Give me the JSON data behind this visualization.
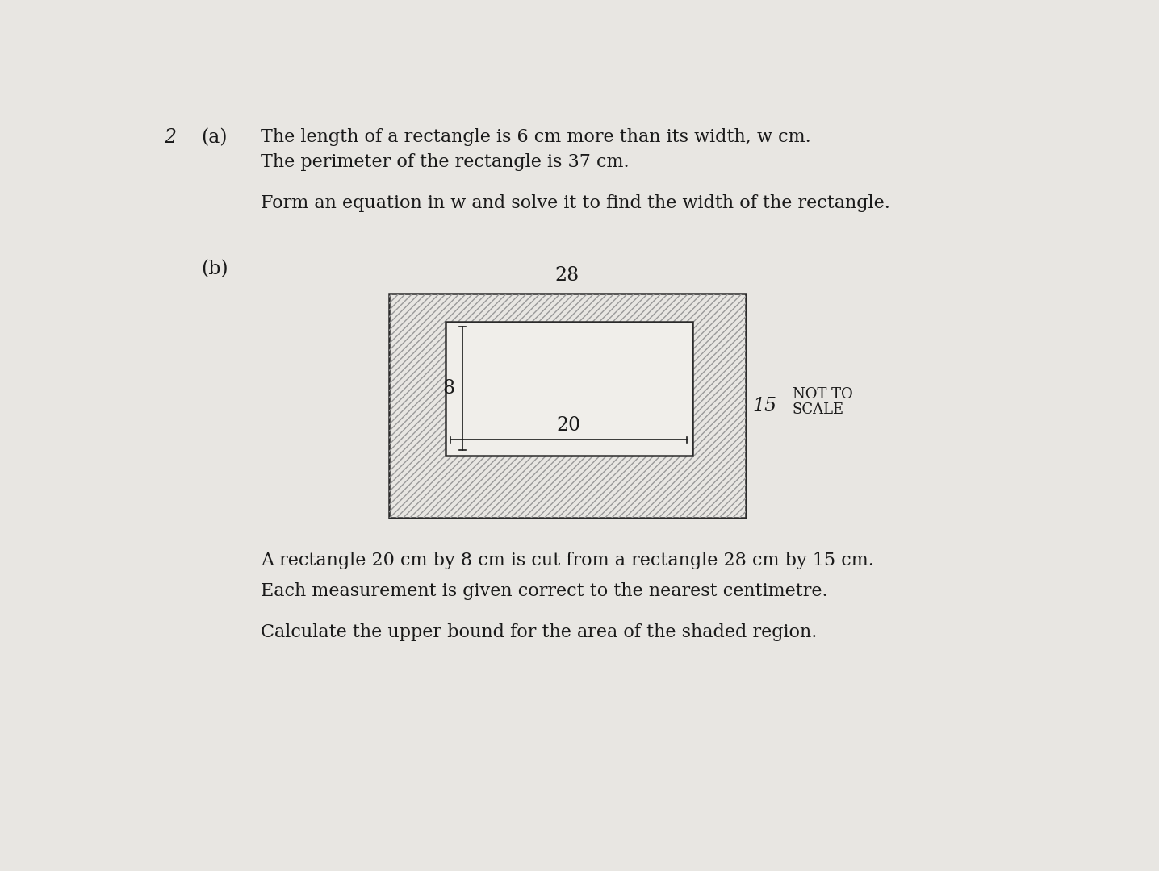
{
  "bg_color": "#e8e6e2",
  "page_color": "#f0eeea",
  "question_number": "2",
  "part_a_label": "(a)",
  "part_a_text1": "The length of a rectangle is 6 cm more than its width, w cm.",
  "part_a_text2": "The perimeter of the rectangle is 37 cm.",
  "part_a_text3": "Form an equation in w and solve it to find the width of the rectangle.",
  "part_b_label": "(b)",
  "diagram_label_28": "28",
  "diagram_label_8": "8",
  "diagram_label_20": "20",
  "diagram_label_15": "15",
  "not_to_scale_line1": "NOT TO",
  "not_to_scale_line2": "SCALE",
  "part_b_text1": "A rectangle 20 cm by 8 cm is cut from a rectangle 28 cm by 15 cm.",
  "part_b_text2": "Each measurement is given correct to the nearest centimetre.",
  "part_b_text3": "Calculate the upper bound for the area of the shaded region.",
  "text_color": "#1a1a1a",
  "hatch_color": "#999999",
  "rect_edge_color": "#2a2a2a",
  "inner_face_color": "#f0eeea",
  "font_size_body": 16,
  "font_size_diagram": 17,
  "font_size_qnum": 17,
  "font_size_nts": 13
}
